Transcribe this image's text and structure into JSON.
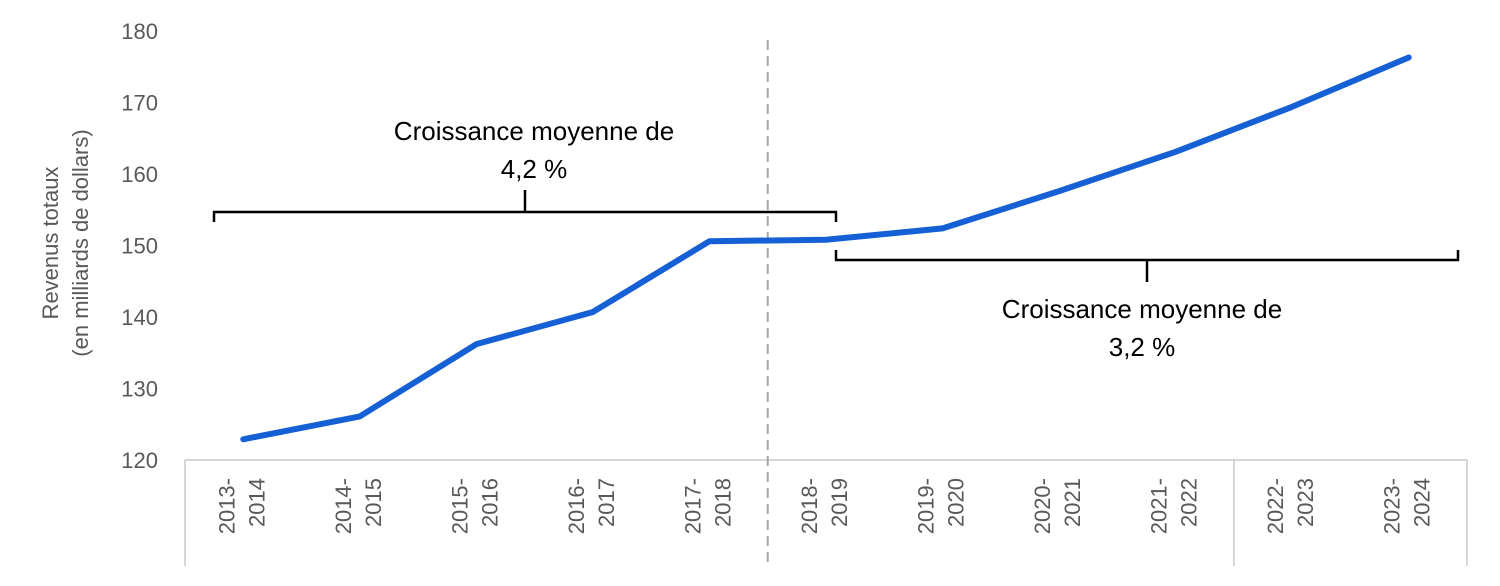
{
  "chart_data": {
    "type": "line",
    "ylabel": [
      "Revenus totaux",
      "(en milliards de dollars)"
    ],
    "ylim": [
      120,
      180
    ],
    "yticks": [
      120,
      130,
      140,
      150,
      160,
      170,
      180
    ],
    "categories": [
      [
        "2013-",
        "2014"
      ],
      [
        "2014-",
        "2015"
      ],
      [
        "2015-",
        "2016"
      ],
      [
        "2016-",
        "2017"
      ],
      [
        "2017-",
        "2018"
      ],
      [
        "2018-",
        "2019"
      ],
      [
        "2019-",
        "2020"
      ],
      [
        "2020-",
        "2021"
      ],
      [
        "2021-",
        "2022"
      ],
      [
        "2022-",
        "2023"
      ],
      [
        "2023-",
        "2024"
      ]
    ],
    "series": [
      {
        "values": [
          122.9,
          126.1,
          136.2,
          140.7,
          150.6,
          150.8,
          152.4,
          157.6,
          163.1,
          169.4,
          176.3
        ],
        "color": "#1560d4"
      }
    ],
    "annotations": [
      {
        "lines": [
          "Croissance moyenne de",
          "4,2 %"
        ],
        "from_index": 0,
        "to_index": 5,
        "position": "above"
      },
      {
        "lines": [
          "Croissance moyenne de",
          "3,2 %"
        ],
        "from_index": 5,
        "to_index": 10,
        "position": "below"
      }
    ],
    "divider_after_index": 4,
    "grid": false,
    "legend": "none"
  }
}
